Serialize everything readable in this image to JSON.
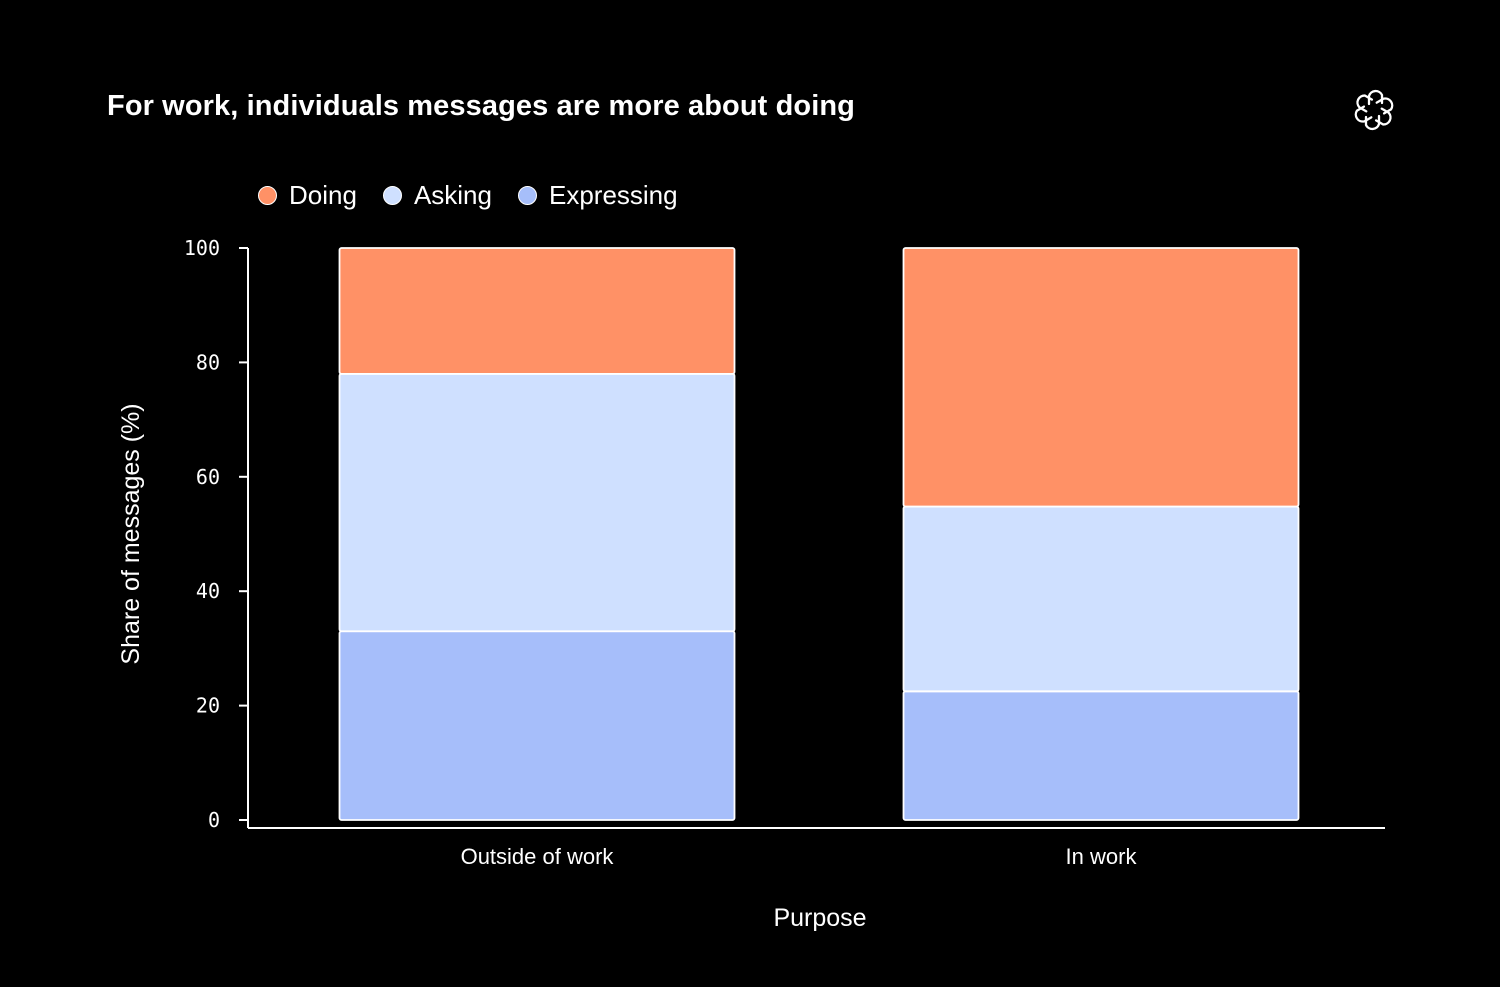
{
  "header": {
    "title": "For work, individuals messages are more about doing",
    "logo_icon": "openai-logo-icon"
  },
  "colors": {
    "background": "#000000",
    "text": "#ffffff",
    "Doing": "#ff9166",
    "Asking": "#cfe0ff",
    "Expressing": "#a6befa",
    "bar_outline": "#ffffff"
  },
  "legend": {
    "position": "top-left",
    "items": [
      {
        "label": "Doing",
        "color": "#ff9166"
      },
      {
        "label": "Asking",
        "color": "#cfe0ff"
      },
      {
        "label": "Expressing",
        "color": "#a6befa"
      }
    ]
  },
  "chart_data": {
    "type": "bar",
    "stacked": true,
    "title": "For work, individuals messages are more about doing",
    "xlabel": "Purpose",
    "ylabel": "Share of messages (%)",
    "categories": [
      "Outside of work",
      "In work"
    ],
    "ylim": [
      0,
      100
    ],
    "yticks": [
      "0",
      "20",
      "40",
      "60",
      "80",
      "100"
    ],
    "grid": false,
    "legend_placement": "top-left",
    "series": [
      {
        "name": "Expressing",
        "color": "#a6befa",
        "values": [
          33,
          22.5
        ]
      },
      {
        "name": "Asking",
        "color": "#cfe0ff",
        "values": [
          45,
          32.3
        ]
      },
      {
        "name": "Doing",
        "color": "#ff9166",
        "values": [
          22,
          45.2
        ]
      }
    ]
  }
}
